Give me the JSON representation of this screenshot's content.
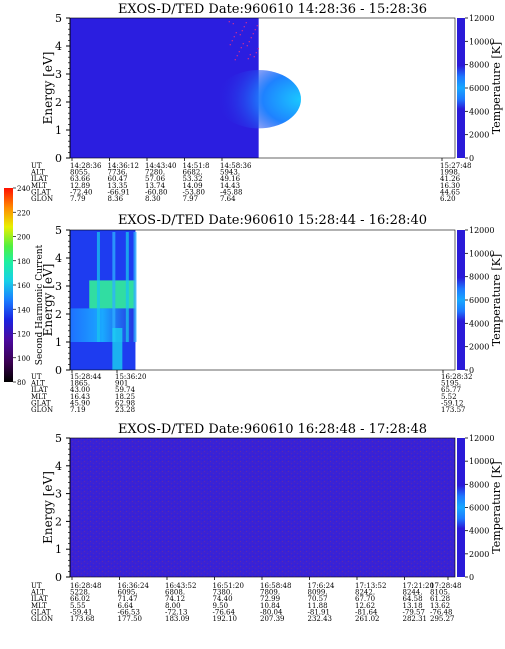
{
  "chart_data": [
    {
      "type": "heatmap",
      "title": "EXOS-D/TED   Date:960610   14:28:36 - 15:28:36",
      "ylabel": "Energy [eV]",
      "ylim": [
        0,
        5
      ],
      "yticks": [
        "0",
        "1",
        "2",
        "3",
        "4",
        "5"
      ],
      "colorbar": {
        "label": "Temperature [K]",
        "range": [
          0,
          12000
        ],
        "ticks": [
          "0",
          "2000",
          "4000",
          "6000",
          "8000",
          "10000",
          "12000"
        ]
      },
      "background": "#2b1ee0",
      "data_coverage_end_fraction": 0.49,
      "features": [
        {
          "desc": "cyan enhancement",
          "x_frac": [
            0.38,
            0.49
          ],
          "energy_eV": [
            1.2,
            3.0
          ],
          "color": "#22aaff"
        }
      ],
      "ephemeris": {
        "labels": [
          "UT",
          "ALT",
          "ILAT",
          "MLT",
          "GLAT",
          "GLON"
        ],
        "columns": [
          [
            "14:28:36",
            "8055.",
            "63.66",
            "12.89",
            "-72.40",
            "7.79"
          ],
          [
            "14:36:12",
            "7736.",
            "60.47",
            "13.35",
            "-66.91",
            "8.36"
          ],
          [
            "14:43:40",
            "7280.",
            "57.06",
            "13.74",
            "-60.80",
            "8.30"
          ],
          [
            "14:51:8",
            "6682.",
            "53.32",
            "14.09",
            "-53.80",
            "7.97"
          ],
          [
            "14:58:36",
            "5943.",
            "49.16",
            "14.43",
            "-45.88",
            "7.64"
          ],
          [
            "15:27:48",
            "1998.",
            "41.26",
            "16.30",
            "44.65",
            "6.20"
          ]
        ]
      }
    },
    {
      "type": "heatmap",
      "title": "EXOS-D/TED   Date:960610   15:28:44 - 16:28:40",
      "ylabel": "Energy [eV]",
      "ylim": [
        0,
        5
      ],
      "yticks": [
        "0",
        "1",
        "2",
        "3",
        "4",
        "5"
      ],
      "colorbar": {
        "label": "Temperature [K]",
        "range": [
          0,
          12000
        ],
        "ticks": [
          "0",
          "2000",
          "4000",
          "6000",
          "8000",
          "10000",
          "12000"
        ]
      },
      "data_coverage_end_fraction": 0.17,
      "features": [
        {
          "desc": "green band",
          "x_frac": [
            0.05,
            0.17
          ],
          "energy_eV": [
            2.2,
            3.2
          ],
          "color": "#33ee99"
        },
        {
          "desc": "cyan patch",
          "x_frac": [
            0.0,
            0.17
          ],
          "energy_eV": [
            1.0,
            2.2
          ],
          "color": "#22ccee"
        }
      ],
      "ephemeris": {
        "labels": [
          "UT",
          "ALT",
          "ILAT",
          "MLT",
          "GLAT",
          "GLON"
        ],
        "columns": [
          [
            "15:28:44",
            "1865.",
            "43.00",
            "16.43",
            "45.90",
            "7.19"
          ],
          [
            "15:36:20",
            "901",
            "59.74",
            "18.25",
            "62.98",
            "23.28"
          ],
          [
            "16:28:32",
            "5195.",
            "65.77",
            "5.52",
            "-59.12",
            "173.57"
          ]
        ]
      }
    },
    {
      "type": "heatmap",
      "title": "EXOS-D/TED   Date:960610   16:28:48 - 17:28:48",
      "ylabel": "Energy [eV]",
      "ylim": [
        0,
        5
      ],
      "yticks": [
        "0",
        "1",
        "2",
        "3",
        "4",
        "5"
      ],
      "colorbar": {
        "label": "Temperature [K]",
        "range": [
          0,
          12000
        ],
        "ticks": [
          "0",
          "2000",
          "4000",
          "6000",
          "8000",
          "10000",
          "12000"
        ]
      },
      "background": "#3a1fd6",
      "data_coverage_end_fraction": 1.0,
      "features": [],
      "ephemeris": {
        "labels": [
          "UT",
          "ALT",
          "ILAT",
          "MLT",
          "GLAT",
          "GLON"
        ],
        "columns": [
          [
            "16:28:48",
            "5228.",
            "66.02",
            "5.55",
            "-59.41",
            "173.68"
          ],
          [
            "16:36:24",
            "6095.",
            "71.47",
            "6.64",
            "-66.53",
            "177.50"
          ],
          [
            "16:43:52",
            "6808.",
            "74.12",
            "8.00",
            "-72.13",
            "183.09"
          ],
          [
            "16:51:20",
            "7380.",
            "74.40",
            "9.50",
            "-76.64",
            "192.10"
          ],
          [
            "16:58:48",
            "7809.",
            "72.99",
            "10.84",
            "-80.04",
            "207.39"
          ],
          [
            "17:6:24",
            "8099.",
            "70.57",
            "11.88",
            "-81.91",
            "232.43"
          ],
          [
            "17:13:52",
            "8242.",
            "67.70",
            "12.62",
            "-81.64",
            "261.02"
          ],
          [
            "17:21:20",
            "8244.",
            "64.58",
            "13.18",
            "-79.57",
            "282.31"
          ],
          [
            "17:28:48",
            "8105.",
            "61.28",
            "13.62",
            "-76.48",
            "295.27"
          ]
        ]
      }
    },
    {
      "type": "colorbar",
      "label": "Second Harmonic Current",
      "range": [
        80,
        240
      ],
      "ticks": [
        "80",
        "100",
        "120",
        "140",
        "160",
        "180",
        "200",
        "220",
        "240"
      ]
    }
  ]
}
